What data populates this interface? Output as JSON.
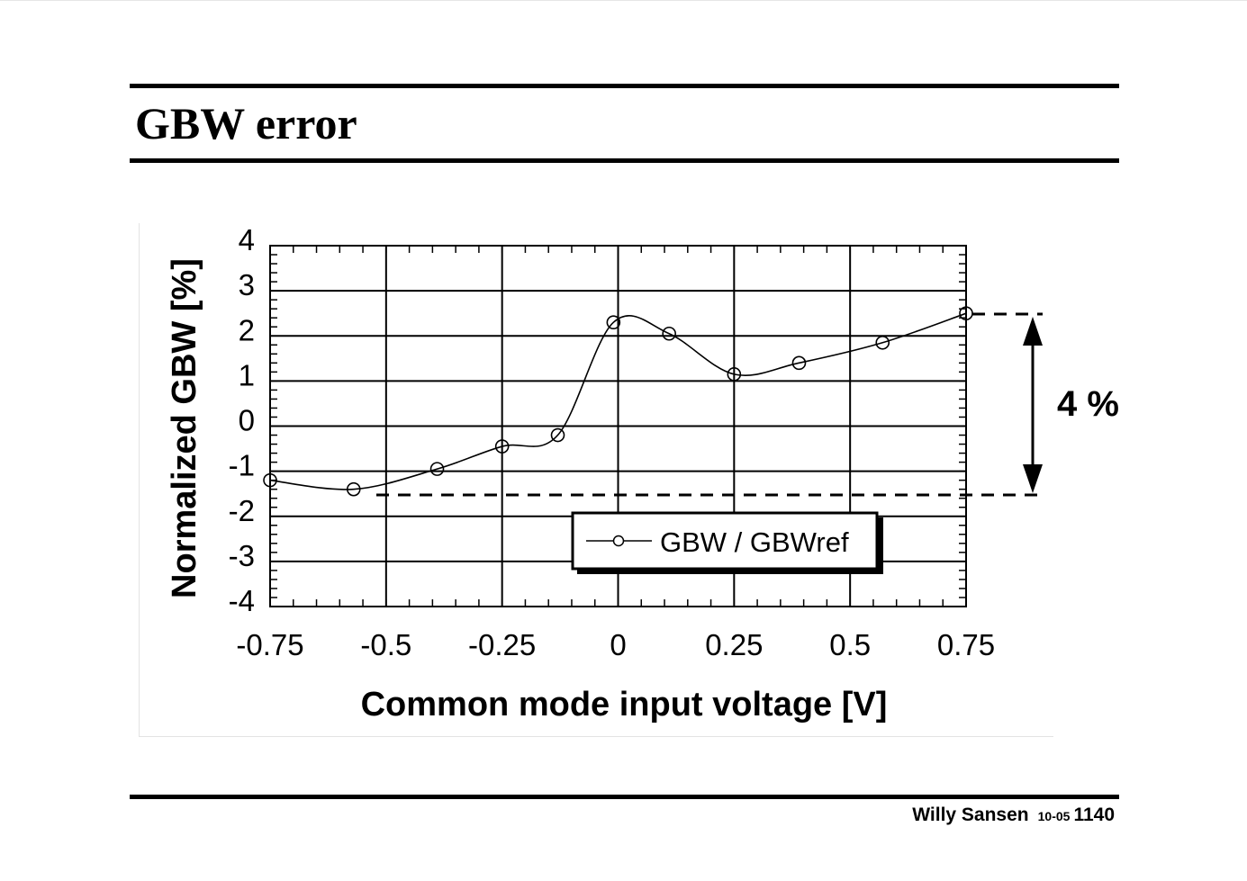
{
  "slide": {
    "title": "GBW error",
    "footer": {
      "author": "Willy Sansen",
      "date_code": "10-05",
      "page_number": "1140"
    }
  },
  "annotation": {
    "label": "4 %",
    "upper_y": 2.5,
    "lower_y": -1.5
  },
  "chart_data": {
    "type": "line",
    "title": "",
    "xlabel": "Common mode input voltage [V]",
    "ylabel": "Normalized GBW [%]",
    "xlim": [
      -0.75,
      0.75
    ],
    "ylim": [
      -4,
      4
    ],
    "x_ticks": [
      "-0.75",
      "-0.5",
      "-0.25",
      "0",
      "0.25",
      "0.5",
      "0.75"
    ],
    "y_ticks": [
      "4",
      "3",
      "2",
      "1",
      "0",
      "-1",
      "-2",
      "-3",
      "-4"
    ],
    "grid": true,
    "legend_position": "lower right inside",
    "series": [
      {
        "name": "GBW / GBWref",
        "marker": "circle",
        "x": [
          -0.75,
          -0.57,
          -0.39,
          -0.25,
          -0.13,
          -0.01,
          0.11,
          0.25,
          0.39,
          0.57,
          0.75
        ],
        "y": [
          -1.2,
          -1.4,
          -0.95,
          -0.45,
          -0.2,
          2.3,
          2.05,
          1.15,
          1.4,
          1.85,
          2.5
        ]
      }
    ],
    "annotations": [
      {
        "type": "double-arrow",
        "from_y": -1.5,
        "to_y": 2.5,
        "text": "4 %"
      }
    ]
  }
}
